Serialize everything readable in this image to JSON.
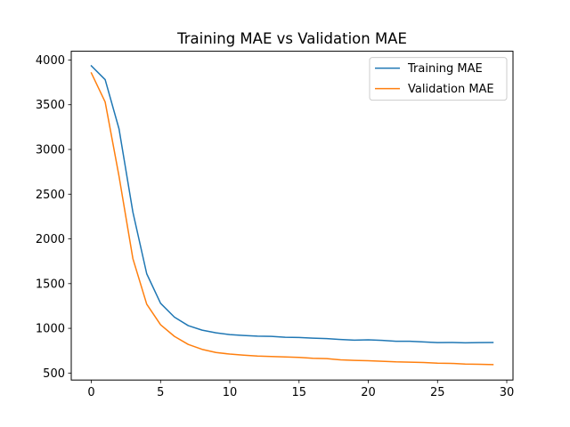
{
  "chart_data": {
    "type": "line",
    "title": "Training MAE vs Validation MAE",
    "xlabel": "",
    "ylabel": "",
    "xlim": [
      -1.45,
      30.45
    ],
    "ylim": [
      422,
      4098
    ],
    "xticks": [
      0,
      5,
      10,
      15,
      20,
      25,
      30
    ],
    "yticks": [
      500,
      1000,
      1500,
      2000,
      2500,
      3000,
      3500,
      4000
    ],
    "grid": false,
    "legend_position": "upper-right",
    "x": [
      0,
      1,
      2,
      3,
      4,
      5,
      6,
      7,
      8,
      9,
      10,
      11,
      12,
      13,
      14,
      15,
      16,
      17,
      18,
      19,
      20,
      21,
      22,
      23,
      24,
      25,
      26,
      27,
      28,
      29
    ],
    "series": [
      {
        "name": "Training MAE",
        "color": "#1f77b4",
        "values": [
          3935,
          3780,
          3230,
          2300,
          1610,
          1280,
          1125,
          1030,
          980,
          950,
          930,
          920,
          912,
          910,
          900,
          898,
          890,
          885,
          875,
          868,
          872,
          865,
          855,
          855,
          848,
          840,
          842,
          838,
          840,
          842
        ]
      },
      {
        "name": "Validation MAE",
        "color": "#ff7f0e",
        "values": [
          3855,
          3530,
          2700,
          1780,
          1270,
          1040,
          910,
          820,
          765,
          730,
          712,
          700,
          690,
          685,
          680,
          675,
          665,
          662,
          648,
          642,
          638,
          632,
          625,
          622,
          618,
          610,
          608,
          600,
          598,
          595
        ]
      }
    ]
  }
}
